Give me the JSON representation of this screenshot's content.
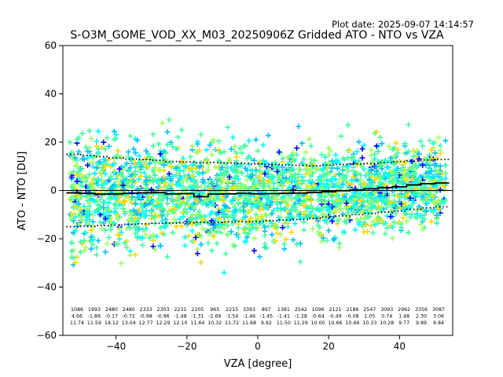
{
  "chart_data": {
    "type": "scatter",
    "title": "S-O3M_GOME_VOD_XX_M03_20250906Z Gridded ATO - NTO vs VZA",
    "plot_date": "Plot date: 2025-09-07 14:14:57",
    "xlabel": "VZA [degree]",
    "ylabel": "ATO - NTO [DU]",
    "xlim": [
      -55,
      55
    ],
    "ylim": [
      -60,
      60
    ],
    "x_ticks": [
      -40,
      -20,
      0,
      20,
      40
    ],
    "y_ticks": [
      -60,
      -40,
      -20,
      0,
      20,
      40,
      60
    ],
    "marker": "+",
    "marker_colors": [
      "#0000ff",
      "#00c0ff",
      "#00ffff",
      "#40ffa0",
      "#a0ff60",
      "#ffd700"
    ],
    "scatter_x_range": [
      -53,
      53
    ],
    "bin_centers": [
      -52,
      -48,
      -44,
      -40,
      -36,
      -32,
      -28,
      -24,
      -20,
      -16,
      -12,
      -8,
      -4,
      0,
      4,
      8,
      12,
      16,
      20,
      24,
      28,
      32,
      36,
      40,
      44,
      48,
      52
    ],
    "mean_line": [
      -1,
      -1.2,
      -1.5,
      -1.4,
      -1.2,
      -1.0,
      -0.9,
      -1.4,
      -1.3,
      -2.6,
      -1.5,
      -1.4,
      -1.2,
      -1.4,
      -1.3,
      -1.2,
      -1.1,
      -0.8,
      -0.5,
      -0.1,
      0.2,
      0.7,
      1.2,
      1.5,
      2.3,
      2.8,
      3.1
    ],
    "upper_std": [
      15,
      14.5,
      14,
      13.5,
      13,
      12.8,
      12.5,
      12,
      11.8,
      11.5,
      11.6,
      11.4,
      11.2,
      11,
      10.8,
      10.5,
      10.4,
      10.2,
      10.5,
      10.8,
      11,
      11.2,
      11.5,
      12,
      12.3,
      12.6,
      12.8
    ],
    "lower_std": [
      -15,
      -14.8,
      -14.5,
      -14.3,
      -14,
      -13.8,
      -13.6,
      -13.5,
      -13.3,
      -13.2,
      -13.2,
      -13,
      -12.9,
      -12.8,
      -12.5,
      -12.2,
      -12,
      -11.5,
      -11,
      -10.5,
      -10,
      -9.5,
      -9,
      -8.5,
      -7.8,
      -7.2,
      -6.8
    ],
    "annotations": {
      "counts": [
        "1086",
        "1993",
        "2480",
        "2480",
        "2333",
        "2303",
        "2231",
        "2205",
        "965",
        "2215",
        "3393",
        "897",
        "1381",
        "2542",
        "1096",
        "2121",
        "2186",
        "2547",
        "3093",
        "2962",
        "3356",
        "3087"
      ],
      "means": [
        "4.66",
        "-1.86",
        "-0.17",
        "-0.72",
        "-0.98",
        "-0.96",
        "-1.48",
        "-1.31",
        "-2.69",
        "-1.54",
        "-1.46",
        "-1.45",
        "-1.41",
        "-1.28",
        "-0.64",
        "-0.49",
        "-0.08",
        "1.05",
        "0.74",
        "1.48",
        "2.30",
        "3.06"
      ],
      "stds": [
        "11.74",
        "11.59",
        "14.12",
        "13.04",
        "12.77",
        "12.29",
        "12.10",
        "11.64",
        "10.32",
        "11.72",
        "11.68",
        "9.92",
        "11.50",
        "11.29",
        "10.00",
        "10.66",
        "10.66",
        "10.33",
        "10.28",
        "9.77",
        "9.89",
        "9.84"
      ]
    }
  }
}
